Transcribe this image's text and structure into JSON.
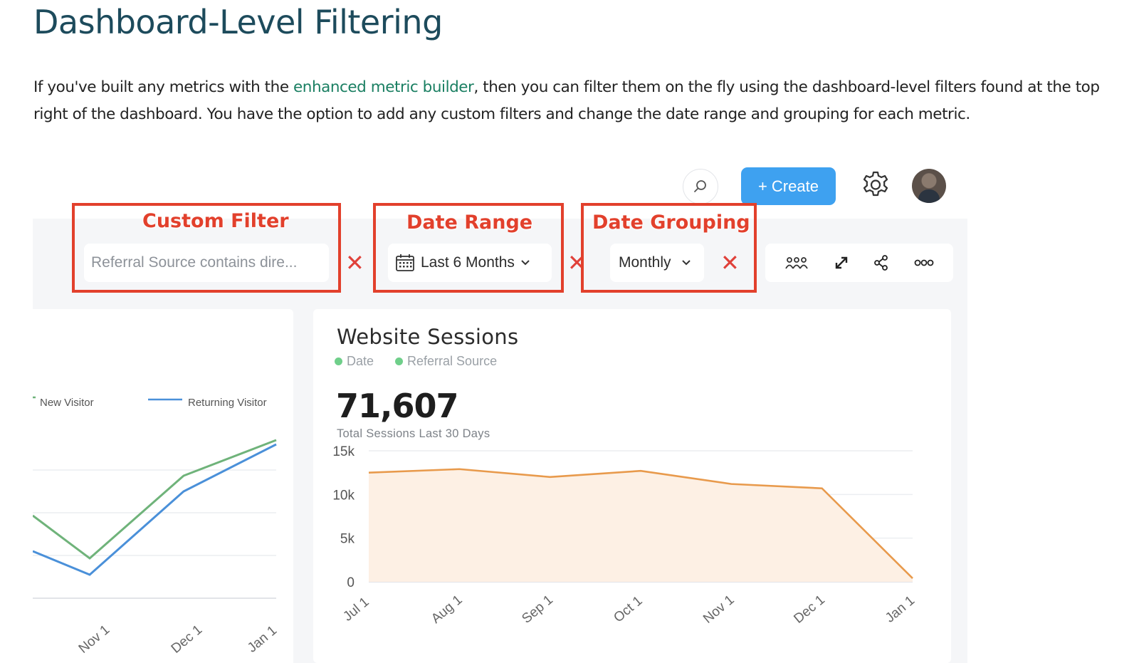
{
  "doc": {
    "title": "Dashboard-Level Filtering",
    "para_before": "If you've built any metrics with the ",
    "link_text": "enhanced metric builder",
    "para_after": ", then you can filter them on the fly using the dashboard-level filters found at the top right of the dashboard. You have the option to add any custom filters and change the date range and grouping for each metric."
  },
  "topbar": {
    "search_icon": "search-icon",
    "create_label": "Create",
    "create_plus": "+",
    "settings_icon": "gear-icon",
    "avatar": "user-avatar"
  },
  "filters": {
    "custom_filter_value": "Referral Source contains dire...",
    "date_range_value": "Last 6 Months",
    "date_grouping_value": "Monthly",
    "remove_symbol": "✕",
    "tools": [
      "group-icon",
      "expand-icon",
      "share-icon",
      "more-icon"
    ]
  },
  "annotations": {
    "custom_filter": "Custom Filter",
    "date_range": "Date Range",
    "date_grouping": "Date Grouping",
    "color": "#e2402c"
  },
  "left_chart": {
    "legend": [
      "New Visitor",
      "Returning Visitor"
    ],
    "x_labels": [
      "Nov 1",
      "Dec 1",
      "Jan 1"
    ],
    "new_color": "#6fb37a",
    "returning_color": "#4a90d9"
  },
  "main_card": {
    "title": "Website Sessions",
    "legend": [
      "Date",
      "Referral Source"
    ],
    "big_number": "71,607",
    "big_sub": "Total Sessions Last 30 Days"
  },
  "chart_data": {
    "type": "area",
    "title": "Website Sessions",
    "categories": [
      "Jul 1",
      "Aug 1",
      "Sep 1",
      "Oct 1",
      "Nov 1",
      "Dec 1",
      "Jan 1"
    ],
    "values": [
      12500,
      12900,
      12000,
      12700,
      11200,
      10700,
      400
    ],
    "y_ticks": [
      "15k",
      "10k",
      "5k",
      "0"
    ],
    "ylim": [
      0,
      15000
    ],
    "color": "#e89a4c",
    "fill": "#fdf0e4",
    "grid": true
  }
}
